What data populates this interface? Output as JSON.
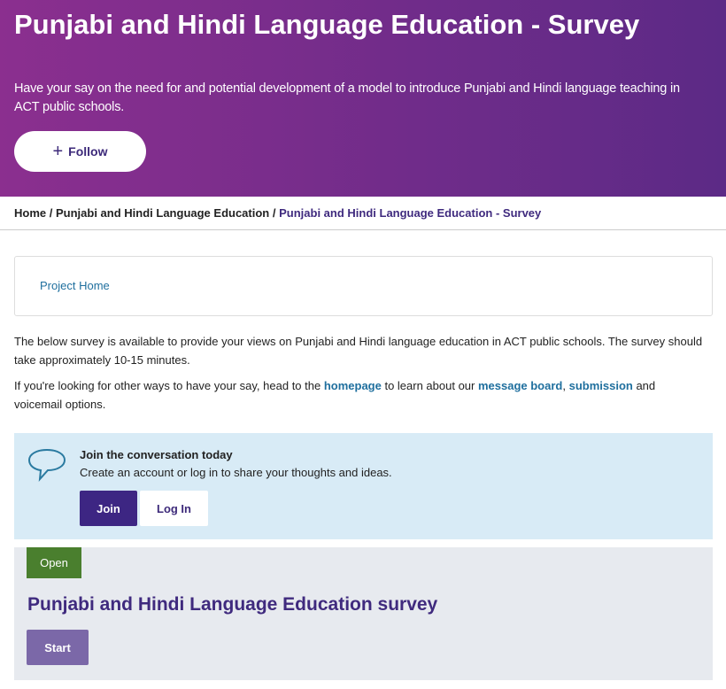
{
  "header": {
    "title": "Punjabi and Hindi Language Education - Survey",
    "subtitle": "Have your say on the need for and potential development of a model to introduce Punjabi and Hindi language teaching in ACT public schools.",
    "follow_label": "Follow",
    "follow_icon": "plus-icon"
  },
  "breadcrumb": {
    "items": [
      "Home",
      "Punjabi and Hindi Language Education",
      "Punjabi and Hindi Language Education - Survey"
    ],
    "separator": "/"
  },
  "project_nav": {
    "link": "Project Home"
  },
  "intro": {
    "p1": "The below survey is available to provide your views on Punjabi and Hindi language education in ACT public schools. The survey should take approximately 10-15 minutes.",
    "p2_a": "If you're looking for other ways to have your say, head to the ",
    "p2_link1": "homepage",
    "p2_b": " to learn about our ",
    "p2_link2": "message board",
    "p2_c": ", ",
    "p2_link3": "submission",
    "p2_d": " and voicemail options."
  },
  "join": {
    "icon": "speech-bubble-icon",
    "title": "Join the conversation today",
    "text": "Create an account or log in to share your thoughts and ideas.",
    "join_label": "Join",
    "login_label": "Log In"
  },
  "survey": {
    "status": "Open",
    "title": "Punjabi and Hindi Language Education survey",
    "start_label": "Start"
  },
  "colors": {
    "brand": "#3f2a7e",
    "link": "#1f6f9e",
    "open": "#4a7f2e",
    "join_bg": "#d8ebf6"
  }
}
